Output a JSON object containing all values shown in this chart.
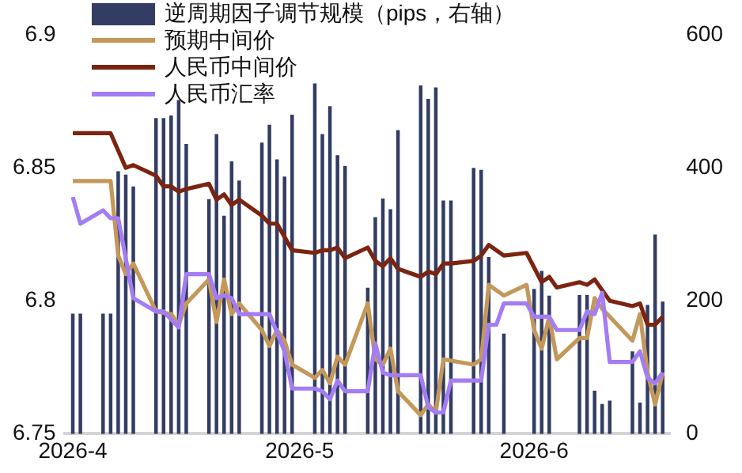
{
  "chart_data": {
    "type": "line",
    "legend": "top left",
    "grid": false,
    "marker": "none",
    "line_style": "solid",
    "xlim": [
      "2026-03-31",
      "2026-06-19"
    ],
    "xticks": [
      {
        "value": "2026-04-01",
        "label": "2026-4"
      },
      {
        "value": "2026-05-01",
        "label": "2026-5"
      },
      {
        "value": "2026-06-01",
        "label": "2026-6"
      }
    ],
    "ylim": [
      6.75,
      6.9
    ],
    "yticks": [
      6.75,
      6.8,
      6.85,
      6.9
    ],
    "y2lim": [
      0,
      600
    ],
    "y2ticks": [
      0,
      200,
      400,
      600
    ],
    "series": [
      {
        "name": "逆周期因子调节规模（pips，右轴）",
        "type": "bar",
        "axis": "y2",
        "color": "#333d63",
        "x": [
          "2026-04-01",
          "2026-04-02",
          "2026-04-05",
          "2026-04-06",
          "2026-04-07",
          "2026-04-08",
          "2026-04-09",
          "2026-04-12",
          "2026-04-13",
          "2026-04-14",
          "2026-04-15",
          "2026-04-16",
          "2026-04-19",
          "2026-04-20",
          "2026-04-21",
          "2026-04-22",
          "2026-04-23",
          "2026-04-26",
          "2026-04-27",
          "2026-04-28",
          "2026-04-29",
          "2026-04-30",
          "2026-05-03",
          "2026-05-04",
          "2026-05-05",
          "2026-05-06",
          "2026-05-07",
          "2026-05-10",
          "2026-05-11",
          "2026-05-12",
          "2026-05-13",
          "2026-05-14",
          "2026-05-17",
          "2026-05-18",
          "2026-05-19",
          "2026-05-20",
          "2026-05-21",
          "2026-05-24",
          "2026-05-25",
          "2026-05-26",
          "2026-05-28",
          "2026-06-01",
          "2026-06-02",
          "2026-06-03",
          "2026-06-07",
          "2026-06-08",
          "2026-06-09",
          "2026-06-10",
          "2026-06-11",
          "2026-06-14",
          "2026-06-15",
          "2026-06-16",
          "2026-06-17",
          "2026-06-18"
        ],
        "values": [
          180,
          180,
          180,
          180,
          394,
          389,
          371,
          474,
          474,
          478,
          501,
          435,
          352,
          450,
          327,
          409,
          380,
          437,
          464,
          412,
          386,
          479,
          526,
          450,
          492,
          418,
          402,
          219,
          325,
          353,
          337,
          456,
          523,
          503,
          520,
          350,
          350,
          399,
          396,
          265,
          150,
          217,
          244,
          207,
          208,
          208,
          64,
          44,
          49,
          123,
          46,
          193,
          299,
          198
        ]
      },
      {
        "name": "预期中间价",
        "color": "#c4985a",
        "x": [
          "2026-04-01",
          "2026-04-06",
          "2026-04-07",
          "2026-04-08",
          "2026-04-09",
          "2026-04-12",
          "2026-04-14",
          "2026-04-15",
          "2026-04-16",
          "2026-04-19",
          "2026-04-20",
          "2026-04-21",
          "2026-04-22",
          "2026-04-23",
          "2026-04-26",
          "2026-04-27",
          "2026-04-28",
          "2026-04-29",
          "2026-04-30",
          "2026-05-03",
          "2026-05-04",
          "2026-05-05",
          "2026-05-06",
          "2026-05-07",
          "2026-05-10",
          "2026-05-11",
          "2026-05-12",
          "2026-05-13",
          "2026-05-14",
          "2026-05-17",
          "2026-05-18",
          "2026-05-19",
          "2026-05-20",
          "2026-05-24",
          "2026-05-25",
          "2026-05-26",
          "2026-05-28",
          "2026-05-31",
          "2026-06-01",
          "2026-06-02",
          "2026-06-03",
          "2026-06-04",
          "2026-06-07",
          "2026-06-08",
          "2026-06-09",
          "2026-06-10",
          "2026-06-14",
          "2026-06-15",
          "2026-06-16",
          "2026-06-17",
          "2026-06-18"
        ],
        "values": [
          6.845,
          6.845,
          6.817,
          6.81,
          6.814,
          6.796,
          6.795,
          6.791,
          6.799,
          6.808,
          6.792,
          6.808,
          6.795,
          6.799,
          6.789,
          6.783,
          6.789,
          6.785,
          6.776,
          6.771,
          6.774,
          6.769,
          6.779,
          6.776,
          6.799,
          6.778,
          6.776,
          6.782,
          6.766,
          6.757,
          6.761,
          6.758,
          6.778,
          6.776,
          6.778,
          6.806,
          6.802,
          6.806,
          6.789,
          6.782,
          6.794,
          6.778,
          6.786,
          6.786,
          6.801,
          6.797,
          6.785,
          6.795,
          6.773,
          6.761,
          6.773
        ]
      },
      {
        "name": "人民币中间价",
        "color": "#7b2410",
        "x": [
          "2026-04-01",
          "2026-04-06",
          "2026-04-08",
          "2026-04-09",
          "2026-04-12",
          "2026-04-13",
          "2026-04-14",
          "2026-04-15",
          "2026-04-16",
          "2026-04-19",
          "2026-04-20",
          "2026-04-21",
          "2026-04-22",
          "2026-04-23",
          "2026-04-26",
          "2026-04-27",
          "2026-04-28",
          "2026-04-30",
          "2026-05-03",
          "2026-05-04",
          "2026-05-05",
          "2026-05-06",
          "2026-05-07",
          "2026-05-10",
          "2026-05-11",
          "2026-05-12",
          "2026-05-13",
          "2026-05-14",
          "2026-05-17",
          "2026-05-18",
          "2026-05-19",
          "2026-05-20",
          "2026-05-21",
          "2026-05-24",
          "2026-05-25",
          "2026-05-26",
          "2026-05-28",
          "2026-05-31",
          "2026-06-02",
          "2026-06-03",
          "2026-06-04",
          "2026-06-07",
          "2026-06-08",
          "2026-06-09",
          "2026-06-11",
          "2026-06-14",
          "2026-06-15",
          "2026-06-16",
          "2026-06-17",
          "2026-06-18"
        ],
        "values": [
          6.863,
          6.863,
          6.85,
          6.851,
          6.847,
          6.843,
          6.843,
          6.841,
          6.842,
          6.844,
          6.838,
          6.84,
          6.836,
          6.838,
          6.832,
          6.829,
          6.829,
          6.819,
          6.818,
          6.819,
          6.819,
          6.82,
          6.816,
          6.82,
          6.815,
          6.813,
          6.816,
          6.812,
          6.809,
          6.811,
          6.81,
          6.814,
          6.814,
          6.815,
          6.817,
          6.821,
          6.817,
          6.818,
          6.807,
          6.809,
          6.805,
          6.807,
          6.806,
          6.808,
          6.8,
          6.798,
          6.799,
          6.791,
          6.791,
          6.794
        ]
      },
      {
        "name": "人民币汇率",
        "color": "#a47cf4",
        "x": [
          "2026-04-01",
          "2026-04-02",
          "2026-04-05",
          "2026-04-06",
          "2026-04-07",
          "2026-04-09",
          "2026-04-12",
          "2026-04-13",
          "2026-04-15",
          "2026-04-16",
          "2026-04-19",
          "2026-04-20",
          "2026-04-21",
          "2026-04-22",
          "2026-04-23",
          "2026-04-27",
          "2026-04-28",
          "2026-04-29",
          "2026-04-30",
          "2026-05-03",
          "2026-05-04",
          "2026-05-05",
          "2026-05-06",
          "2026-05-07",
          "2026-05-10",
          "2026-05-11",
          "2026-05-12",
          "2026-05-13",
          "2026-05-17",
          "2026-05-18",
          "2026-05-19",
          "2026-05-20",
          "2026-05-21",
          "2026-05-25",
          "2026-05-26",
          "2026-05-27",
          "2026-05-28",
          "2026-05-31",
          "2026-06-01",
          "2026-06-03",
          "2026-06-04",
          "2026-06-07",
          "2026-06-08",
          "2026-06-09",
          "2026-06-10",
          "2026-06-11",
          "2026-06-14",
          "2026-06-15",
          "2026-06-16",
          "2026-06-17",
          "2026-06-18"
        ],
        "values": [
          6.839,
          6.829,
          6.834,
          6.831,
          6.831,
          6.801,
          6.796,
          6.796,
          6.79,
          6.81,
          6.81,
          6.801,
          6.802,
          6.801,
          6.795,
          6.795,
          6.788,
          6.781,
          6.767,
          6.767,
          6.766,
          6.763,
          6.77,
          6.766,
          6.766,
          6.784,
          6.773,
          6.772,
          6.772,
          6.76,
          6.758,
          6.758,
          6.77,
          6.77,
          6.791,
          6.791,
          6.799,
          6.799,
          6.794,
          6.794,
          6.789,
          6.789,
          6.796,
          6.795,
          6.803,
          6.777,
          6.777,
          6.781,
          6.771,
          6.769,
          6.773
        ]
      }
    ]
  }
}
